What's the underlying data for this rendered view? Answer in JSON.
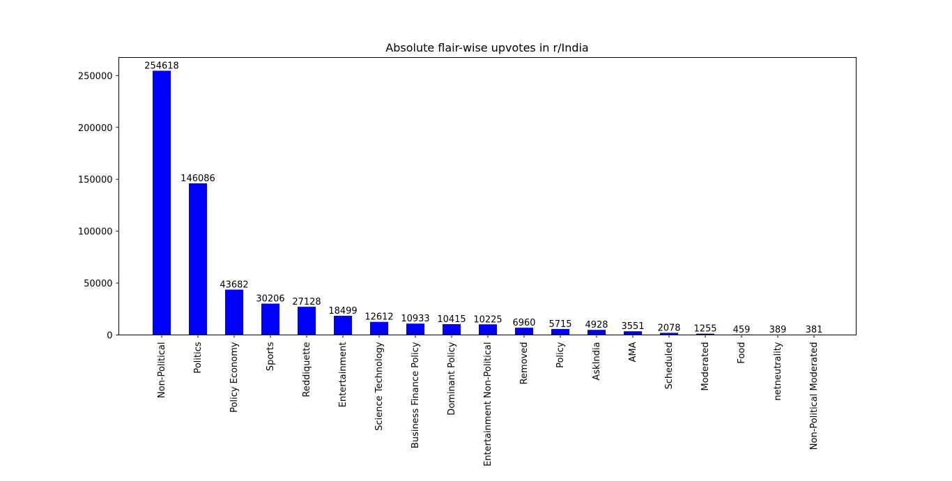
{
  "chart_data": {
    "type": "bar",
    "title": "Absolute flair-wise upvotes in r/India",
    "xlabel": "",
    "ylabel": "",
    "categories": [
      "Non-Political",
      "Politics",
      "Policy Economy",
      "Sports",
      "Reddiquette",
      "Entertainment",
      "Science Technology",
      "Business Finance Policy",
      "Dominant Policy",
      "Entertainment Non-Political",
      "Removed",
      "Policy",
      "AskIndia",
      "AMA",
      "Scheduled",
      "Moderated",
      "Food",
      "netneutrality",
      "Non-Political Moderated"
    ],
    "values": [
      254618,
      146086,
      43682,
      30206,
      27128,
      18499,
      12612,
      10933,
      10415,
      10225,
      6960,
      5715,
      4928,
      3551,
      2078,
      1255,
      459,
      389,
      381
    ],
    "data_labels": [
      "254618",
      "146086",
      "43682",
      "30206",
      "27128",
      "18499",
      "12612",
      "10933",
      "10415",
      "10225",
      "6960",
      "5715",
      "4928",
      "3551",
      "2078",
      "1255",
      "459",
      "389",
      "381"
    ],
    "ylim": [
      0,
      267350
    ],
    "yticks": [
      0,
      50000,
      100000,
      150000,
      200000,
      250000
    ],
    "ytick_labels": [
      "0",
      "50000",
      "100000",
      "150000",
      "200000",
      "250000"
    ],
    "bar_color": "#0000ff",
    "grid": false,
    "legend": "none"
  }
}
